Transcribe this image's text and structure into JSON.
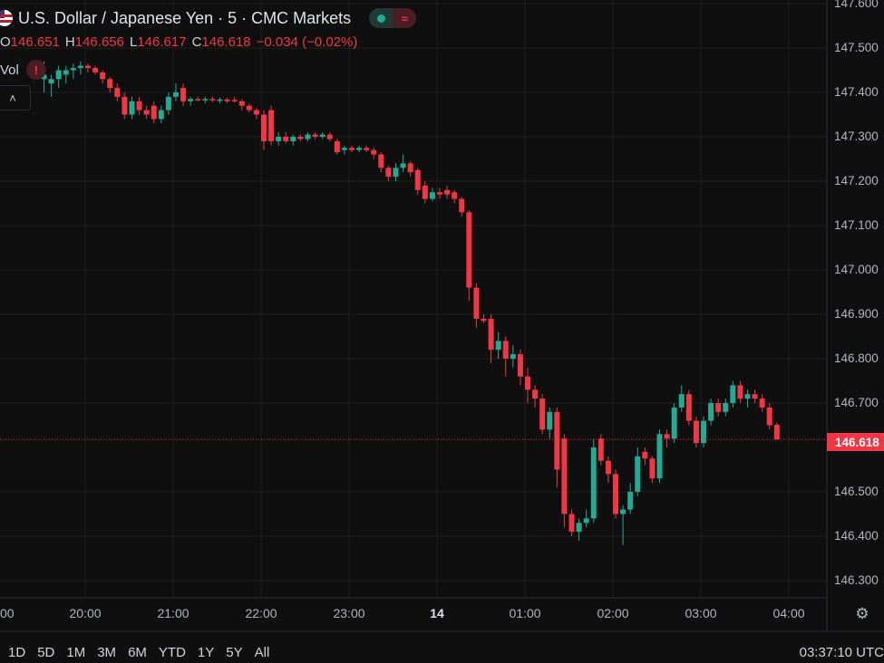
{
  "header": {
    "title": "U.S. Dollar / Japanese Yen · 5 · CMC Markets",
    "ohlc": {
      "o_label": "O",
      "o_value": "146.651",
      "h_label": "H",
      "h_value": "146.656",
      "l_label": "L",
      "l_value": "146.617",
      "c_label": "C",
      "c_value": "146.618",
      "change": "−0.034 (−0.02%)"
    },
    "vol_label": "Vol",
    "warning_glyph": "!",
    "collapse_glyph": "˄",
    "status_icons": [
      "market-status-dot-icon",
      "wave-icon"
    ]
  },
  "price_axis": {
    "ticks": [
      "147.600",
      "147.500",
      "147.400",
      "147.300",
      "147.200",
      "147.100",
      "147.000",
      "146.900",
      "146.800",
      "146.700",
      "146.500",
      "146.400",
      "146.300"
    ],
    "current_price_label": "146.618"
  },
  "time_axis": {
    "ticks": [
      "00",
      "20:00",
      "21:00",
      "22:00",
      "23:00",
      "14",
      "01:00",
      "02:00",
      "03:00",
      "04:00"
    ]
  },
  "bottom_bar": {
    "ranges": [
      "1D",
      "5D",
      "1M",
      "3M",
      "6M",
      "YTD",
      "1Y",
      "5Y",
      "All"
    ],
    "clock": "03:37:10 UTC"
  },
  "colors": {
    "up": "#22ab94",
    "down": "#f23645",
    "background": "#0f0f0f",
    "grid": "#1f1f1f"
  },
  "chart_data": {
    "type": "candlestick",
    "title": "U.S. Dollar / Japanese Yen · 5 · CMC Markets",
    "interval_minutes": 5,
    "y_range": [
      146.25,
      147.65
    ],
    "x_range": [
      "19:00",
      "04:00"
    ],
    "current_price": 146.618,
    "grid": true,
    "candles": [
      {
        "t": "19:30",
        "o": 147.43,
        "h": 147.47,
        "l": 147.4,
        "c": 147.44
      },
      {
        "t": "19:35",
        "o": 147.42,
        "h": 147.44,
        "l": 147.39,
        "c": 147.43
      },
      {
        "t": "19:40",
        "o": 147.43,
        "h": 147.46,
        "l": 147.41,
        "c": 147.45
      },
      {
        "t": "19:45",
        "o": 147.44,
        "h": 147.46,
        "l": 147.42,
        "c": 147.45
      },
      {
        "t": "19:50",
        "o": 147.45,
        "h": 147.465,
        "l": 147.43,
        "c": 147.455
      },
      {
        "t": "19:55",
        "o": 147.455,
        "h": 147.47,
        "l": 147.44,
        "c": 147.46
      },
      {
        "t": "20:00",
        "o": 147.46,
        "h": 147.465,
        "l": 147.445,
        "c": 147.455
      },
      {
        "t": "20:05",
        "o": 147.455,
        "h": 147.46,
        "l": 147.44,
        "c": 147.445
      },
      {
        "t": "20:10",
        "o": 147.445,
        "h": 147.45,
        "l": 147.42,
        "c": 147.43
      },
      {
        "t": "20:15",
        "o": 147.43,
        "h": 147.435,
        "l": 147.4,
        "c": 147.41
      },
      {
        "t": "20:20",
        "o": 147.41,
        "h": 147.42,
        "l": 147.38,
        "c": 147.39
      },
      {
        "t": "20:25",
        "o": 147.39,
        "h": 147.4,
        "l": 147.34,
        "c": 147.35
      },
      {
        "t": "20:30",
        "o": 147.35,
        "h": 147.39,
        "l": 147.34,
        "c": 147.38
      },
      {
        "t": "20:35",
        "o": 147.38,
        "h": 147.39,
        "l": 147.35,
        "c": 147.36
      },
      {
        "t": "20:40",
        "o": 147.36,
        "h": 147.37,
        "l": 147.34,
        "c": 147.35
      },
      {
        "t": "20:45",
        "o": 147.37,
        "h": 147.38,
        "l": 147.33,
        "c": 147.34
      },
      {
        "t": "20:50",
        "o": 147.34,
        "h": 147.37,
        "l": 147.33,
        "c": 147.36
      },
      {
        "t": "20:55",
        "o": 147.36,
        "h": 147.4,
        "l": 147.35,
        "c": 147.39
      },
      {
        "t": "21:00",
        "o": 147.39,
        "h": 147.42,
        "l": 147.38,
        "c": 147.4
      },
      {
        "t": "21:05",
        "o": 147.41,
        "h": 147.42,
        "l": 147.37,
        "c": 147.38
      },
      {
        "t": "21:10",
        "o": 147.38,
        "h": 147.39,
        "l": 147.37,
        "c": 147.385
      },
      {
        "t": "21:15",
        "o": 147.385,
        "h": 147.39,
        "l": 147.38,
        "c": 147.382
      },
      {
        "t": "21:20",
        "o": 147.383,
        "h": 147.39,
        "l": 147.375,
        "c": 147.385
      },
      {
        "t": "21:25",
        "o": 147.385,
        "h": 147.39,
        "l": 147.378,
        "c": 147.382
      },
      {
        "t": "21:30",
        "o": 147.382,
        "h": 147.388,
        "l": 147.375,
        "c": 147.384
      },
      {
        "t": "21:35",
        "o": 147.384,
        "h": 147.388,
        "l": 147.376,
        "c": 147.38
      },
      {
        "t": "21:40",
        "o": 147.383,
        "h": 147.39,
        "l": 147.377,
        "c": 147.38
      },
      {
        "t": "21:45",
        "o": 147.38,
        "h": 147.385,
        "l": 147.36,
        "c": 147.37
      },
      {
        "t": "21:50",
        "o": 147.37,
        "h": 147.375,
        "l": 147.355,
        "c": 147.36
      },
      {
        "t": "21:55",
        "o": 147.36,
        "h": 147.365,
        "l": 147.34,
        "c": 147.35
      },
      {
        "t": "22:00",
        "o": 147.35,
        "h": 147.36,
        "l": 147.27,
        "c": 147.29
      },
      {
        "t": "22:05",
        "o": 147.36,
        "h": 147.37,
        "l": 147.28,
        "c": 147.29
      },
      {
        "t": "22:10",
        "o": 147.29,
        "h": 147.31,
        "l": 147.28,
        "c": 147.3
      },
      {
        "t": "22:15",
        "o": 147.3,
        "h": 147.31,
        "l": 147.285,
        "c": 147.29
      },
      {
        "t": "22:20",
        "o": 147.29,
        "h": 147.305,
        "l": 147.28,
        "c": 147.3
      },
      {
        "t": "22:25",
        "o": 147.3,
        "h": 147.305,
        "l": 147.29,
        "c": 147.295
      },
      {
        "t": "22:30",
        "o": 147.295,
        "h": 147.31,
        "l": 147.29,
        "c": 147.305
      },
      {
        "t": "22:35",
        "o": 147.305,
        "h": 147.31,
        "l": 147.295,
        "c": 147.3
      },
      {
        "t": "22:40",
        "o": 147.3,
        "h": 147.31,
        "l": 147.295,
        "c": 147.305
      },
      {
        "t": "22:45",
        "o": 147.305,
        "h": 147.31,
        "l": 147.29,
        "c": 147.295
      },
      {
        "t": "22:50",
        "o": 147.29,
        "h": 147.295,
        "l": 147.26,
        "c": 147.265
      },
      {
        "t": "22:55",
        "o": 147.27,
        "h": 147.28,
        "l": 147.26,
        "c": 147.275
      },
      {
        "t": "23:00",
        "o": 147.275,
        "h": 147.28,
        "l": 147.265,
        "c": 147.27
      },
      {
        "t": "23:05",
        "o": 147.27,
        "h": 147.28,
        "l": 147.265,
        "c": 147.275
      },
      {
        "t": "23:10",
        "o": 147.275,
        "h": 147.28,
        "l": 147.265,
        "c": 147.27
      },
      {
        "t": "23:15",
        "o": 147.27,
        "h": 147.275,
        "l": 147.25,
        "c": 147.26
      },
      {
        "t": "23:20",
        "o": 147.26,
        "h": 147.265,
        "l": 147.22,
        "c": 147.23
      },
      {
        "t": "23:25",
        "o": 147.23,
        "h": 147.235,
        "l": 147.2,
        "c": 147.21
      },
      {
        "t": "23:30",
        "o": 147.21,
        "h": 147.24,
        "l": 147.2,
        "c": 147.23
      },
      {
        "t": "23:35",
        "o": 147.23,
        "h": 147.26,
        "l": 147.22,
        "c": 147.24
      },
      {
        "t": "23:40",
        "o": 147.24,
        "h": 147.245,
        "l": 147.21,
        "c": 147.22
      },
      {
        "t": "23:45",
        "o": 147.225,
        "h": 147.23,
        "l": 147.17,
        "c": 147.18
      },
      {
        "t": "23:50",
        "o": 147.19,
        "h": 147.2,
        "l": 147.15,
        "c": 147.16
      },
      {
        "t": "23:55",
        "o": 147.16,
        "h": 147.185,
        "l": 147.155,
        "c": 147.175
      },
      {
        "t": "00:00",
        "o": 147.175,
        "h": 147.185,
        "l": 147.16,
        "c": 147.17
      },
      {
        "t": "00:05",
        "o": 147.18,
        "h": 147.19,
        "l": 147.16,
        "c": 147.17
      },
      {
        "t": "00:10",
        "o": 147.175,
        "h": 147.18,
        "l": 147.15,
        "c": 147.16
      },
      {
        "t": "00:15",
        "o": 147.16,
        "h": 147.165,
        "l": 147.12,
        "c": 147.13
      },
      {
        "t": "00:20",
        "o": 147.13,
        "h": 147.135,
        "l": 146.93,
        "c": 146.96
      },
      {
        "t": "00:25",
        "o": 146.96,
        "h": 146.97,
        "l": 146.87,
        "c": 146.89
      },
      {
        "t": "00:30",
        "o": 146.89,
        "h": 146.9,
        "l": 146.88,
        "c": 146.885
      },
      {
        "t": "00:35",
        "o": 146.89,
        "h": 146.9,
        "l": 146.79,
        "c": 146.82
      },
      {
        "t": "00:40",
        "o": 146.82,
        "h": 146.86,
        "l": 146.8,
        "c": 146.84
      },
      {
        "t": "00:45",
        "o": 146.84,
        "h": 146.85,
        "l": 146.76,
        "c": 146.8
      },
      {
        "t": "00:50",
        "o": 146.8,
        "h": 146.83,
        "l": 146.78,
        "c": 146.81
      },
      {
        "t": "00:55",
        "o": 146.81,
        "h": 146.82,
        "l": 146.74,
        "c": 146.76
      },
      {
        "t": "01:00",
        "o": 146.76,
        "h": 146.78,
        "l": 146.7,
        "c": 146.73
      },
      {
        "t": "01:05",
        "o": 146.73,
        "h": 146.74,
        "l": 146.69,
        "c": 146.71
      },
      {
        "t": "01:10",
        "o": 146.71,
        "h": 146.72,
        "l": 146.63,
        "c": 146.64
      },
      {
        "t": "01:15",
        "o": 146.64,
        "h": 146.69,
        "l": 146.62,
        "c": 146.68
      },
      {
        "t": "01:20",
        "o": 146.68,
        "h": 146.69,
        "l": 146.51,
        "c": 146.55
      },
      {
        "t": "01:25",
        "o": 146.62,
        "h": 146.63,
        "l": 146.42,
        "c": 146.45
      },
      {
        "t": "01:30",
        "o": 146.45,
        "h": 146.46,
        "l": 146.4,
        "c": 146.41
      },
      {
        "t": "01:35",
        "o": 146.41,
        "h": 146.44,
        "l": 146.39,
        "c": 146.43
      },
      {
        "t": "01:40",
        "o": 146.43,
        "h": 146.46,
        "l": 146.42,
        "c": 146.44
      },
      {
        "t": "01:45",
        "o": 146.44,
        "h": 146.62,
        "l": 146.43,
        "c": 146.6
      },
      {
        "t": "01:50",
        "o": 146.62,
        "h": 146.63,
        "l": 146.56,
        "c": 146.57
      },
      {
        "t": "01:55",
        "o": 146.57,
        "h": 146.58,
        "l": 146.52,
        "c": 146.54
      },
      {
        "t": "02:00",
        "o": 146.54,
        "h": 146.55,
        "l": 146.44,
        "c": 146.45
      },
      {
        "t": "02:05",
        "o": 146.45,
        "h": 146.47,
        "l": 146.38,
        "c": 146.46
      },
      {
        "t": "02:10",
        "o": 146.46,
        "h": 146.52,
        "l": 146.45,
        "c": 146.5
      },
      {
        "t": "02:15",
        "o": 146.5,
        "h": 146.6,
        "l": 146.49,
        "c": 146.58
      },
      {
        "t": "02:20",
        "o": 146.59,
        "h": 146.6,
        "l": 146.56,
        "c": 146.575
      },
      {
        "t": "02:25",
        "o": 146.575,
        "h": 146.58,
        "l": 146.52,
        "c": 146.53
      },
      {
        "t": "02:30",
        "o": 146.53,
        "h": 146.64,
        "l": 146.52,
        "c": 146.63
      },
      {
        "t": "02:35",
        "o": 146.63,
        "h": 146.64,
        "l": 146.6,
        "c": 146.62
      },
      {
        "t": "02:40",
        "o": 146.62,
        "h": 146.7,
        "l": 146.61,
        "c": 146.69
      },
      {
        "t": "02:45",
        "o": 146.69,
        "h": 146.74,
        "l": 146.68,
        "c": 146.72
      },
      {
        "t": "02:50",
        "o": 146.72,
        "h": 146.73,
        "l": 146.65,
        "c": 146.66
      },
      {
        "t": "02:55",
        "o": 146.66,
        "h": 146.67,
        "l": 146.6,
        "c": 146.61
      },
      {
        "t": "03:00",
        "o": 146.61,
        "h": 146.67,
        "l": 146.6,
        "c": 146.66
      },
      {
        "t": "03:05",
        "o": 146.66,
        "h": 146.71,
        "l": 146.65,
        "c": 146.7
      },
      {
        "t": "03:10",
        "o": 146.7,
        "h": 146.71,
        "l": 146.67,
        "c": 146.68
      },
      {
        "t": "03:15",
        "o": 146.68,
        "h": 146.71,
        "l": 146.67,
        "c": 146.7
      },
      {
        "t": "03:20",
        "o": 146.7,
        "h": 146.75,
        "l": 146.69,
        "c": 146.74
      },
      {
        "t": "03:25",
        "o": 146.74,
        "h": 146.75,
        "l": 146.7,
        "c": 146.71
      },
      {
        "t": "03:30",
        "o": 146.71,
        "h": 146.73,
        "l": 146.69,
        "c": 146.72
      },
      {
        "t": "03:35",
        "o": 146.72,
        "h": 146.73,
        "l": 146.7,
        "c": 146.71
      },
      {
        "t": "03:40",
        "o": 146.71,
        "h": 146.72,
        "l": 146.68,
        "c": 146.69
      },
      {
        "t": "03:45",
        "o": 146.69,
        "h": 146.7,
        "l": 146.64,
        "c": 146.65
      },
      {
        "t": "03:50",
        "o": 146.651,
        "h": 146.656,
        "l": 146.617,
        "c": 146.618
      }
    ]
  }
}
